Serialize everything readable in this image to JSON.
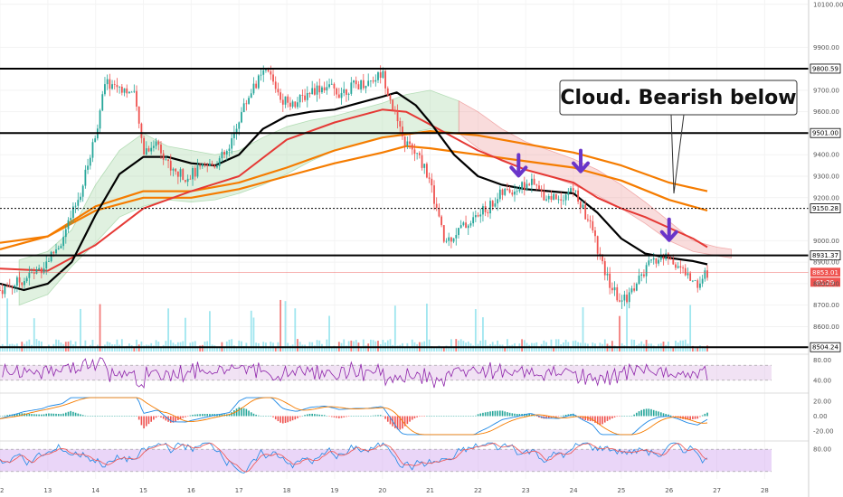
{
  "chart_data": {
    "type": "candlestick",
    "colors": {
      "up": "#26a69a",
      "down": "#ef5350",
      "ema_fast": "#000000",
      "ema_mid": "#e53935",
      "ema_slow": "#f57c00",
      "cloud_bull": "#a5d6a7",
      "cloud_bear": "#ef9a9a",
      "volume": "#80deea",
      "arrow": "#6a35c9",
      "rsi_band": "#e1bee7",
      "rsi_line": "#8e24aa",
      "stoch_band": "#d1a3f0",
      "macd_up": "#26a69a",
      "macd_down": "#ef5350"
    },
    "price_axis": {
      "ylim": [
        8480,
        10120
      ],
      "ticks": [
        "10100.00",
        "9900.00",
        "9700.00",
        "9600.00",
        "9400.00",
        "9300.00",
        "9200.00",
        "9000.00",
        "8900.00",
        "8800.00",
        "8700.00",
        "8600.00"
      ]
    },
    "x_axis": {
      "xlim": [
        12,
        28.9
      ],
      "ticks": [
        "12",
        "13",
        "14",
        "15",
        "16",
        "17",
        "18",
        "19",
        "20",
        "21",
        "22",
        "23",
        "24",
        "25",
        "26",
        "27",
        "28"
      ]
    },
    "price_path": [
      [
        12.0,
        8770
      ],
      [
        12.5,
        8820
      ],
      [
        12.9,
        8880
      ],
      [
        13.3,
        9000
      ],
      [
        13.7,
        9230
      ],
      [
        14.0,
        9500
      ],
      [
        14.2,
        9730
      ],
      [
        14.5,
        9720
      ],
      [
        14.8,
        9680
      ],
      [
        15.0,
        9420
      ],
      [
        15.3,
        9460
      ],
      [
        15.6,
        9320
      ],
      [
        15.9,
        9300
      ],
      [
        16.2,
        9330
      ],
      [
        16.5,
        9360
      ],
      [
        16.8,
        9420
      ],
      [
        17.0,
        9570
      ],
      [
        17.3,
        9720
      ],
      [
        17.6,
        9790
      ],
      [
        17.9,
        9660
      ],
      [
        18.2,
        9640
      ],
      [
        18.5,
        9700
      ],
      [
        18.8,
        9720
      ],
      [
        19.1,
        9690
      ],
      [
        19.4,
        9720
      ],
      [
        19.7,
        9740
      ],
      [
        20.0,
        9780
      ],
      [
        20.2,
        9640
      ],
      [
        20.4,
        9480
      ],
      [
        20.7,
        9400
      ],
      [
        20.9,
        9340
      ],
      [
        21.1,
        9180
      ],
      [
        21.3,
        8990
      ],
      [
        21.6,
        9050
      ],
      [
        21.9,
        9100
      ],
      [
        22.2,
        9150
      ],
      [
        22.5,
        9220
      ],
      [
        22.8,
        9240
      ],
      [
        23.1,
        9270
      ],
      [
        23.4,
        9210
      ],
      [
        23.7,
        9200
      ],
      [
        24.0,
        9240
      ],
      [
        24.2,
        9140
      ],
      [
        24.4,
        9050
      ],
      [
        24.6,
        8880
      ],
      [
        24.8,
        8780
      ],
      [
        25.0,
        8710
      ],
      [
        25.2,
        8760
      ],
      [
        25.4,
        8830
      ],
      [
        25.6,
        8890
      ],
      [
        25.8,
        8920
      ],
      [
        26.0,
        8920
      ],
      [
        26.2,
        8880
      ],
      [
        26.4,
        8830
      ],
      [
        26.6,
        8800
      ],
      [
        26.8,
        8853
      ]
    ],
    "ema_fast": [
      [
        12.0,
        8800
      ],
      [
        12.5,
        8770
      ],
      [
        13.0,
        8800
      ],
      [
        13.5,
        8900
      ],
      [
        14.0,
        9120
      ],
      [
        14.5,
        9310
      ],
      [
        15.0,
        9390
      ],
      [
        15.5,
        9390
      ],
      [
        16.0,
        9360
      ],
      [
        16.5,
        9350
      ],
      [
        17.0,
        9400
      ],
      [
        17.5,
        9520
      ],
      [
        18.0,
        9580
      ],
      [
        18.5,
        9600
      ],
      [
        19.0,
        9610
      ],
      [
        19.5,
        9640
      ],
      [
        20.0,
        9670
      ],
      [
        20.3,
        9690
      ],
      [
        20.7,
        9630
      ],
      [
        21.0,
        9550
      ],
      [
        21.5,
        9400
      ],
      [
        22.0,
        9300
      ],
      [
        22.5,
        9260
      ],
      [
        23.0,
        9240
      ],
      [
        23.5,
        9230
      ],
      [
        24.0,
        9220
      ],
      [
        24.5,
        9130
      ],
      [
        25.0,
        9010
      ],
      [
        25.5,
        8940
      ],
      [
        26.0,
        8920
      ],
      [
        26.5,
        8905
      ],
      [
        26.8,
        8890
      ]
    ],
    "ema_mid": [
      [
        12.0,
        8870
      ],
      [
        13.0,
        8860
      ],
      [
        14.0,
        8980
      ],
      [
        15.0,
        9150
      ],
      [
        16.0,
        9230
      ],
      [
        17.0,
        9300
      ],
      [
        18.0,
        9470
      ],
      [
        19.0,
        9550
      ],
      [
        20.0,
        9610
      ],
      [
        20.5,
        9600
      ],
      [
        21.0,
        9540
      ],
      [
        22.0,
        9420
      ],
      [
        23.0,
        9330
      ],
      [
        24.0,
        9270
      ],
      [
        24.5,
        9200
      ],
      [
        25.0,
        9150
      ],
      [
        25.5,
        9110
      ],
      [
        26.0,
        9060
      ],
      [
        26.5,
        9010
      ],
      [
        26.8,
        8970
      ]
    ],
    "ema_slow_a": [
      [
        12.0,
        8960
      ],
      [
        13.0,
        9020
      ],
      [
        14.0,
        9160
      ],
      [
        15.0,
        9230
      ],
      [
        16.0,
        9230
      ],
      [
        17.0,
        9270
      ],
      [
        18.0,
        9340
      ],
      [
        19.0,
        9420
      ],
      [
        20.0,
        9480
      ],
      [
        21.0,
        9510
      ],
      [
        22.0,
        9490
      ],
      [
        23.0,
        9450
      ],
      [
        24.0,
        9410
      ],
      [
        25.0,
        9350
      ],
      [
        26.0,
        9270
      ],
      [
        26.8,
        9230
      ]
    ],
    "ema_slow_b": [
      [
        12.0,
        8990
      ],
      [
        13.0,
        9020
      ],
      [
        14.0,
        9140
      ],
      [
        15.0,
        9200
      ],
      [
        16.0,
        9200
      ],
      [
        17.0,
        9240
      ],
      [
        18.0,
        9300
      ],
      [
        19.0,
        9360
      ],
      [
        20.0,
        9410
      ],
      [
        20.5,
        9440
      ],
      [
        21.0,
        9430
      ],
      [
        22.0,
        9400
      ],
      [
        23.0,
        9370
      ],
      [
        24.0,
        9340
      ],
      [
        25.0,
        9280
      ],
      [
        26.0,
        9190
      ],
      [
        26.8,
        9140
      ]
    ],
    "cloud": {
      "bull": [
        [
          12.4,
          8910,
          8700
        ],
        [
          13.0,
          8950,
          8750
        ],
        [
          13.5,
          9050,
          8880
        ],
        [
          14.0,
          9260,
          8990
        ],
        [
          14.5,
          9420,
          9110
        ],
        [
          15.0,
          9500,
          9160
        ],
        [
          15.5,
          9440,
          9190
        ],
        [
          16.0,
          9420,
          9180
        ],
        [
          16.5,
          9400,
          9190
        ],
        [
          17.0,
          9420,
          9220
        ],
        [
          17.5,
          9480,
          9260
        ],
        [
          18.0,
          9530,
          9310
        ],
        [
          18.5,
          9560,
          9370
        ],
        [
          19.0,
          9580,
          9420
        ],
        [
          19.5,
          9610,
          9450
        ],
        [
          20.0,
          9640,
          9480
        ],
        [
          20.5,
          9680,
          9500
        ],
        [
          21.0,
          9700,
          9520
        ],
        [
          21.6,
          9650,
          9500
        ]
      ],
      "bear": [
        [
          21.6,
          9650,
          9500
        ],
        [
          22.0,
          9600,
          9430
        ],
        [
          22.5,
          9520,
          9370
        ],
        [
          23.0,
          9460,
          9330
        ],
        [
          23.5,
          9420,
          9300
        ],
        [
          24.0,
          9380,
          9260
        ],
        [
          24.5,
          9330,
          9210
        ],
        [
          25.0,
          9260,
          9150
        ],
        [
          25.5,
          9180,
          9080
        ],
        [
          26.0,
          9090,
          9000
        ],
        [
          26.5,
          9000,
          8950
        ],
        [
          27.0,
          8970,
          8930
        ],
        [
          27.3,
          8960,
          8920
        ]
      ]
    },
    "horizontal_levels": [
      {
        "price": 9800.59,
        "label": "9800.59",
        "style": "solid"
      },
      {
        "price": 9501.0,
        "label": "9501.00",
        "style": "solid"
      },
      {
        "price": 9150.28,
        "label": "9150.28",
        "style": "dotted"
      },
      {
        "price": 8931.37,
        "label": "8931.37",
        "style": "solid"
      },
      {
        "price": 8504.24,
        "label": "8504.24",
        "style": "solid"
      }
    ],
    "current_price": {
      "value": "8853.01",
      "countdown": "01:29"
    },
    "arrows": [
      [
        22.85,
        9290
      ],
      [
        24.15,
        9310
      ],
      [
        26.0,
        8990
      ]
    ],
    "annotation": {
      "text": "Cloud. Bearish below",
      "points_to": [
        26.1,
        9220
      ]
    },
    "rsi": {
      "ticks": [
        "80.00",
        "40.00"
      ],
      "band": [
        40,
        70
      ],
      "ylim": [
        20,
        90
      ]
    },
    "macd": {
      "ticks": [
        "20.00",
        "0.00",
        "-20.00"
      ],
      "ylim": [
        -30,
        30
      ]
    },
    "stoch": {
      "ticks": [
        "80.00"
      ],
      "band": [
        20,
        80
      ],
      "ylim": [
        0,
        100
      ]
    }
  }
}
